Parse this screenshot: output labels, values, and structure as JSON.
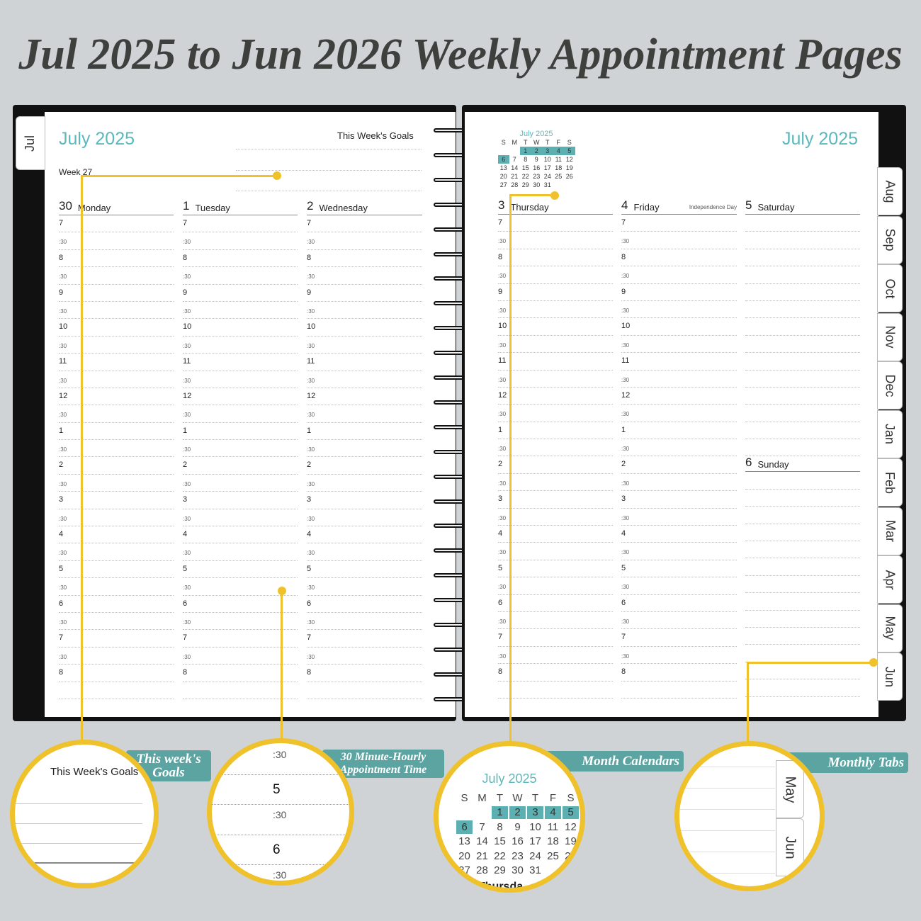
{
  "title": "Jul 2025 to Jun 2026 Weekly Appointment Pages",
  "left_page": {
    "tab": "Jul",
    "month": "July 2025",
    "goals_label": "This Week's Goals",
    "week": "Week 27",
    "days": [
      {
        "num": "30",
        "name": "Monday"
      },
      {
        "num": "1",
        "name": "Tuesday"
      },
      {
        "num": "2",
        "name": "Wednesday"
      }
    ]
  },
  "right_page": {
    "month": "July 2025",
    "mini_calendar": {
      "title": "July 2025",
      "weekdays": [
        "S",
        "M",
        "T",
        "W",
        "T",
        "F",
        "S"
      ],
      "weeks": [
        [
          "",
          "",
          "1",
          "2",
          "3",
          "4",
          "5"
        ],
        [
          "6",
          "7",
          "8",
          "9",
          "10",
          "11",
          "12"
        ],
        [
          "13",
          "14",
          "15",
          "16",
          "17",
          "18",
          "19"
        ],
        [
          "20",
          "21",
          "22",
          "23",
          "24",
          "25",
          "26"
        ],
        [
          "27",
          "28",
          "29",
          "30",
          "31",
          "",
          ""
        ]
      ],
      "highlighted": [
        "1",
        "2",
        "3",
        "4",
        "5",
        "6"
      ]
    },
    "days": [
      {
        "num": "3",
        "name": "Thursday"
      },
      {
        "num": "4",
        "name": "Friday",
        "holiday": "Independence Day"
      },
      {
        "num": "5",
        "name": "Saturday"
      }
    ],
    "sunday": {
      "num": "6",
      "name": "Sunday"
    },
    "tabs": [
      "Aug",
      "Sep",
      "Oct",
      "Nov",
      "Dec",
      "Jan",
      "Feb",
      "Mar",
      "Apr",
      "May",
      "Jun"
    ]
  },
  "times": [
    "7",
    ":30",
    "8",
    ":30",
    "9",
    ":30",
    "10",
    ":30",
    "11",
    ":30",
    "12",
    ":30",
    "1",
    ":30",
    "2",
    ":30",
    "3",
    ":30",
    "4",
    ":30",
    "5",
    ":30",
    "6",
    ":30",
    "7",
    ":30",
    "8"
  ],
  "callouts": {
    "goals": {
      "label": "This week's Goals",
      "zoom_text": "This Week's Goals"
    },
    "time": {
      "label": "30 Minute-Hourly Appointment Time",
      "zoom_times": [
        ":30",
        "5",
        ":30",
        "6",
        ":30"
      ]
    },
    "calendar": {
      "label": "Month Calendars",
      "zoom_title": "July 2025",
      "zoom_partial": "Thursda"
    },
    "tabs": {
      "label": "Monthly Tabs",
      "zoom_tabs": [
        "May",
        "Jun"
      ]
    }
  },
  "colors": {
    "accent": "#5cb8bc",
    "callout": "#efc12a",
    "label_bg": "#5ba4a2"
  }
}
